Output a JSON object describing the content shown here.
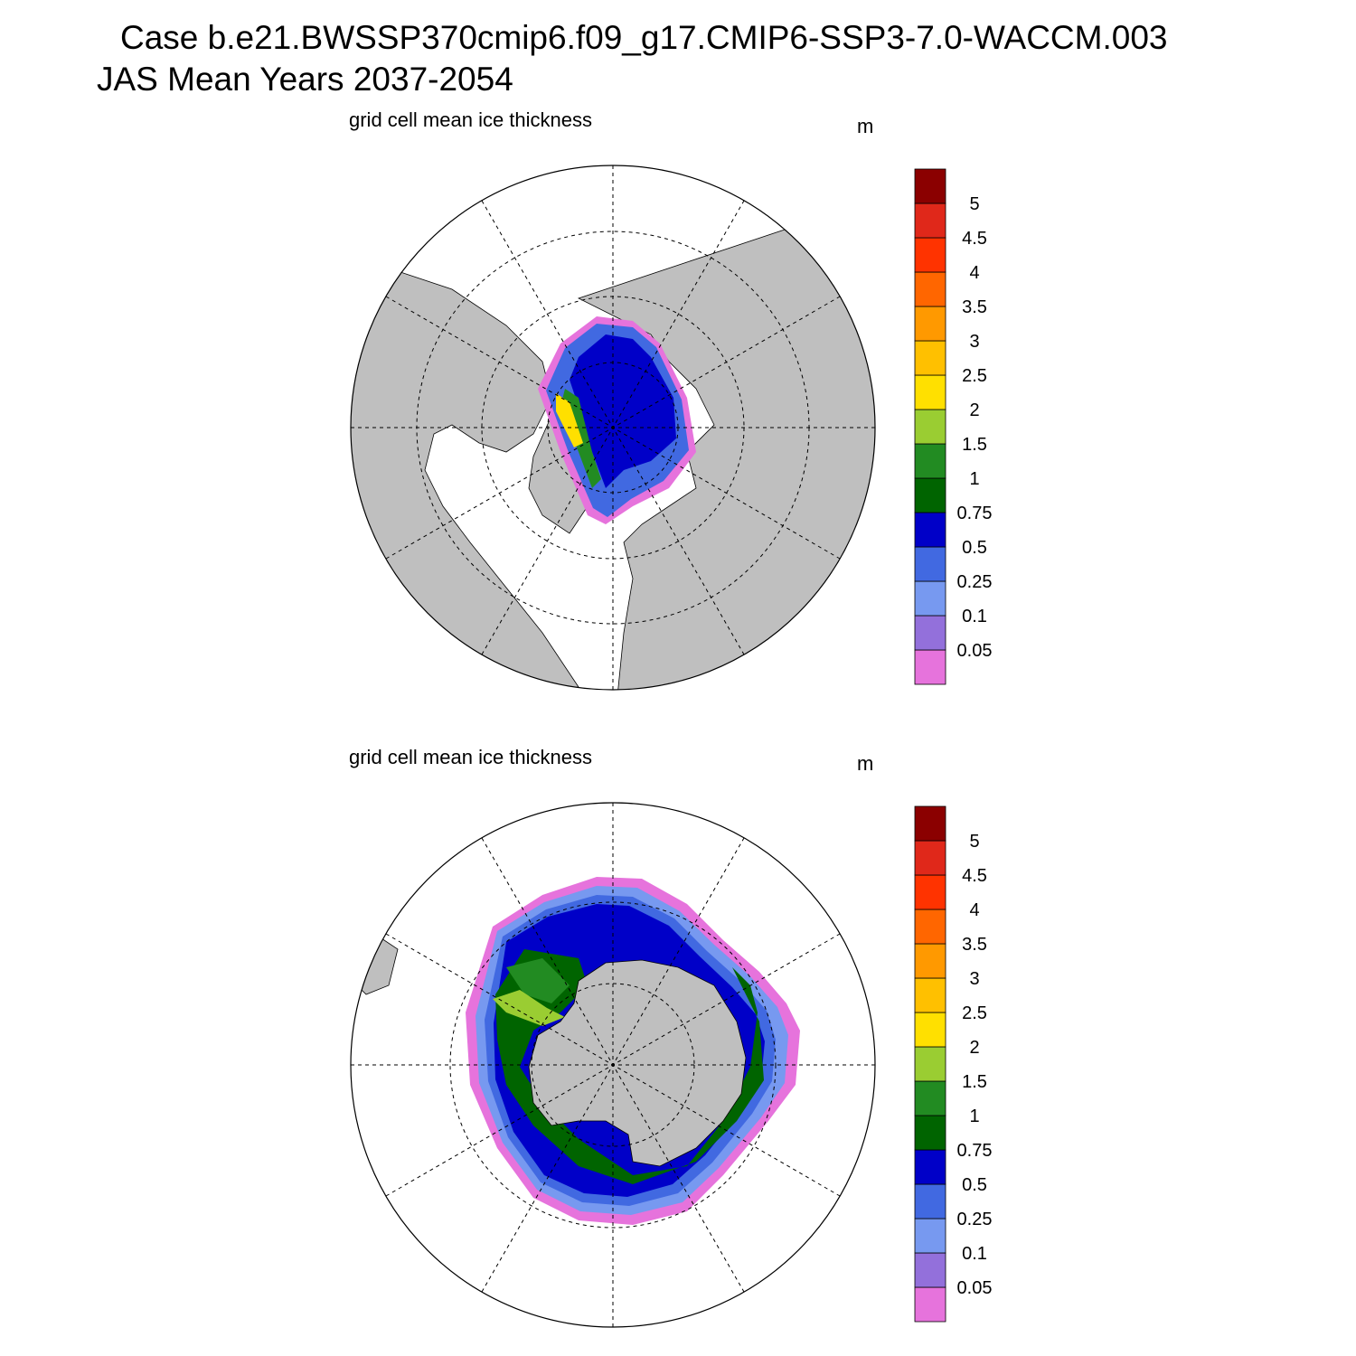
{
  "title": {
    "line1": "Case b.e21.BWSSP370cmip6.f09_g17.CMIP6-SSP3-7.0-WACCM.003",
    "line2": "JAS Mean   Years 2037-2054"
  },
  "colorbar": {
    "levels": [
      "0.05",
      "0.1",
      "0.25",
      "0.5",
      "0.75",
      "1",
      "1.5",
      "2",
      "2.5",
      "3",
      "3.5",
      "4",
      "4.5",
      "5"
    ],
    "colors_bottom_to_top": [
      "#e673dc",
      "#9370db",
      "#7799f0",
      "#4169e1",
      "#0000c8",
      "#006400",
      "#228b22",
      "#9acd32",
      "#ffe000",
      "#ffc000",
      "#ff9900",
      "#ff6600",
      "#ff3300",
      "#e0281a",
      "#8b0000"
    ]
  },
  "colors": {
    "land": "#bfbfbf",
    "ocean": "#ffffff"
  },
  "panels": [
    {
      "id": "north",
      "left_label": "grid cell mean ice thickness",
      "units": "m"
    },
    {
      "id": "south",
      "left_label": "grid cell mean ice thickness",
      "units": "m"
    }
  ]
}
